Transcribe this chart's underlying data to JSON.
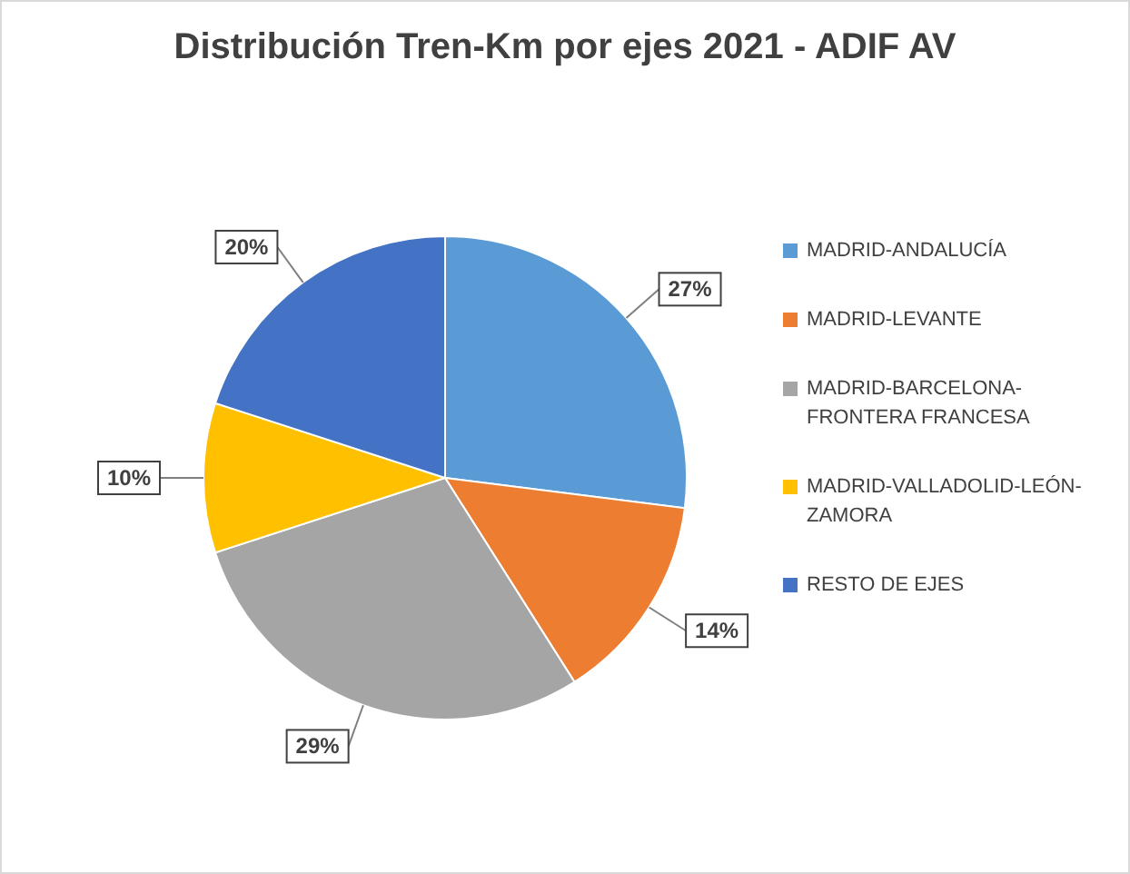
{
  "chart_data": {
    "type": "pie",
    "title": "Distribución Tren-Km por ejes 2021 - ADIF AV",
    "categories": [
      "MADRID-ANDALUCÍA",
      "MADRID-LEVANTE",
      "MADRID-BARCELONA-FRONTERA FRANCESA",
      "MADRID-VALLADOLID-LEÓN-ZAMORA",
      "RESTO DE EJES"
    ],
    "values": [
      27,
      14,
      29,
      10,
      20
    ],
    "colors": [
      "#5b9bd5",
      "#ed7d31",
      "#a5a5a5",
      "#ffc000",
      "#4472c4"
    ],
    "value_labels": [
      "27%",
      "14%",
      "29%",
      "10%",
      "20%"
    ],
    "legend": "right"
  }
}
